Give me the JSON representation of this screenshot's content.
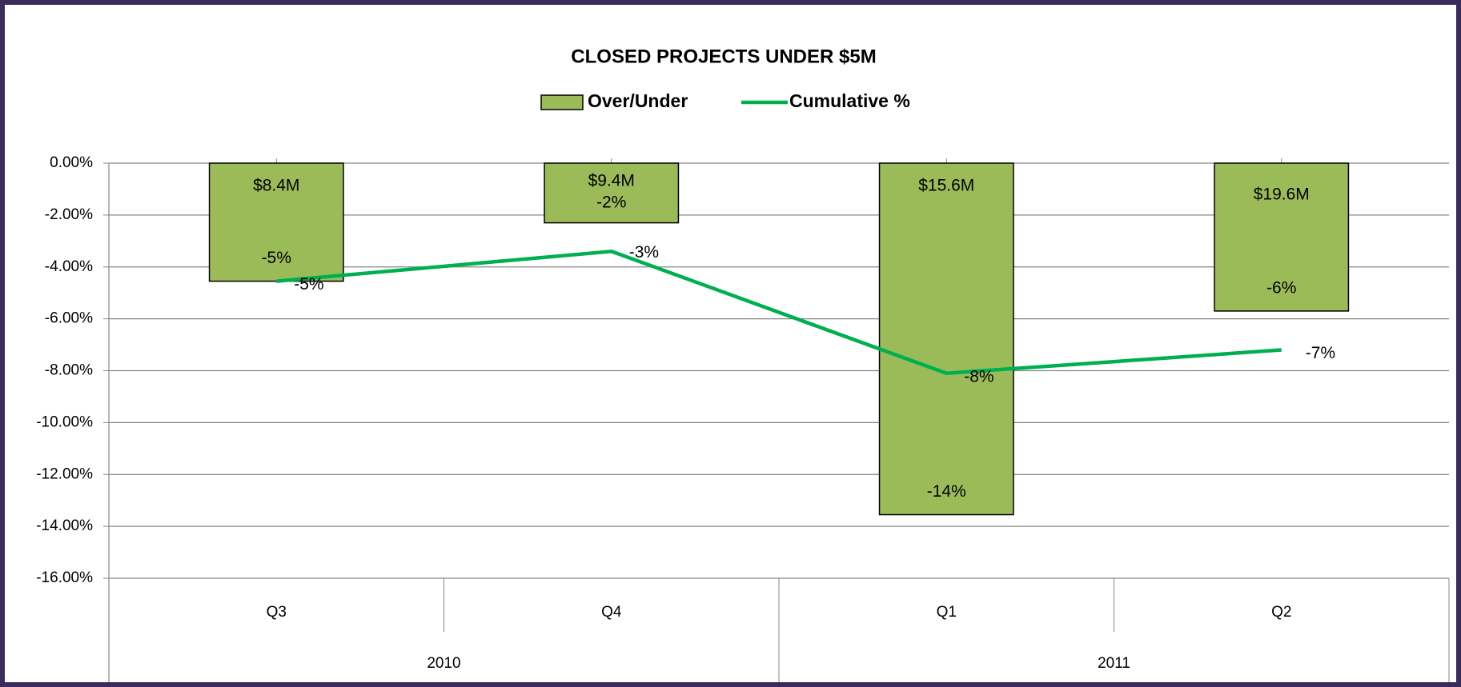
{
  "chart_data": {
    "type": "bar_line",
    "title": "CLOSED PROJECTS UNDER $5M",
    "categories": [
      "Q3",
      "Q4",
      "Q1",
      "Q2"
    ],
    "category_groups": [
      {
        "label": "2010",
        "span": 2
      },
      {
        "label": "2011",
        "span": 2
      }
    ],
    "series": [
      {
        "name": "Over/Under",
        "type": "bar",
        "color": "#9bbb59",
        "values": [
          -4.55,
          -2.3,
          -13.55,
          -5.7
        ],
        "value_labels": [
          "-5%",
          "-2%",
          "-14%",
          "-6%"
        ],
        "annotations": [
          "$8.4M",
          "$9.4M",
          "$15.6M",
          "$19.6M"
        ]
      },
      {
        "name": "Cumulative %",
        "type": "line",
        "color": "#00b050",
        "values": [
          -4.55,
          -3.4,
          -8.1,
          -7.2
        ],
        "value_labels": [
          "-5%",
          "-3%",
          "-8%",
          "-7%"
        ]
      }
    ],
    "ylim": [
      -16,
      0
    ],
    "yticks": [
      {
        "value": 0,
        "label": "0.00%"
      },
      {
        "value": -2,
        "label": "-2.00%"
      },
      {
        "value": -4,
        "label": "-4.00%"
      },
      {
        "value": -6,
        "label": "-6.00%"
      },
      {
        "value": -8,
        "label": "-8.00%"
      },
      {
        "value": -10,
        "label": "-10.00%"
      },
      {
        "value": -12,
        "label": "-12.00%"
      },
      {
        "value": -14,
        "label": "-14.00%"
      },
      {
        "value": -16,
        "label": "-16.00%"
      }
    ],
    "grid": true
  }
}
